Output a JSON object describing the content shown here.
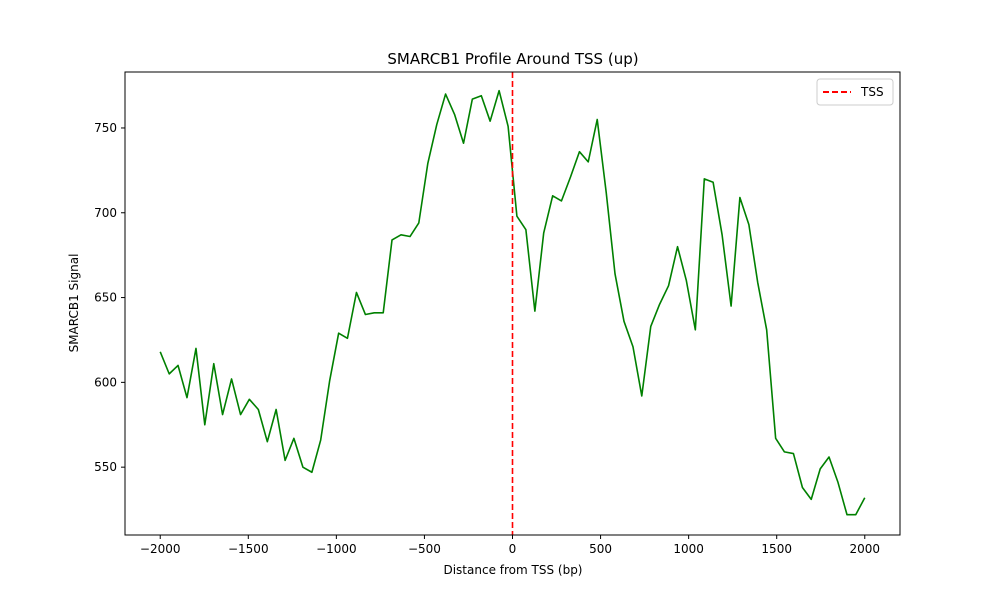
{
  "chart_data": {
    "type": "line",
    "title": "SMARCB1 Profile Around TSS (up)",
    "xlabel": "Distance from TSS (bp)",
    "ylabel": "SMARCB1 Signal",
    "xlim": [
      -2200,
      2200
    ],
    "ylim": [
      510,
      783
    ],
    "xticks": [
      -2000,
      -1500,
      -1000,
      -500,
      0,
      500,
      1000,
      1500,
      2000
    ],
    "xtick_labels": [
      "−2000",
      "−1500",
      "−1000",
      "−500",
      "0",
      "500",
      "1000",
      "1500",
      "2000"
    ],
    "yticks": [
      550,
      600,
      650,
      700,
      750
    ],
    "ytick_labels": [
      "550",
      "600",
      "650",
      "700",
      "750"
    ],
    "grid": false,
    "legend": {
      "position": "top-right",
      "entries": [
        "TSS"
      ]
    },
    "series": [
      {
        "color": "#008000",
        "x": [
          -2000,
          -1949,
          -1899,
          -1848,
          -1797,
          -1747,
          -1696,
          -1646,
          -1595,
          -1544,
          -1494,
          -1443,
          -1392,
          -1342,
          -1291,
          -1241,
          -1190,
          -1139,
          -1089,
          -1038,
          -987,
          -937,
          -886,
          -835,
          -785,
          -734,
          -684,
          -633,
          -582,
          -532,
          -481,
          -430,
          -380,
          -329,
          -278,
          -228,
          -177,
          -127,
          -76,
          -25,
          25,
          76,
          127,
          177,
          228,
          278,
          329,
          380,
          430,
          481,
          532,
          582,
          633,
          684,
          734,
          785,
          835,
          886,
          937,
          987,
          1038,
          1089,
          1139,
          1190,
          1241,
          1291,
          1342,
          1392,
          1443,
          1494,
          1544,
          1595,
          1646,
          1696,
          1747,
          1797,
          1848,
          1899,
          1949,
          2000
        ],
        "y": [
          618,
          605,
          610,
          591,
          620,
          575,
          611,
          581,
          602,
          581,
          590,
          584,
          565,
          584,
          554,
          567,
          550,
          547,
          566,
          601,
          629,
          626,
          653,
          640,
          641,
          641,
          684,
          687,
          686,
          694,
          729,
          752,
          770,
          758,
          741,
          767,
          769,
          754,
          772,
          751,
          698,
          690,
          642,
          688,
          710,
          707,
          721,
          736,
          730,
          755,
          712,
          664,
          636,
          621,
          592,
          633,
          646,
          657,
          680,
          660,
          631,
          720,
          718,
          687,
          645,
          709,
          693,
          659,
          631,
          567,
          559,
          558,
          538,
          531,
          549,
          556,
          541,
          522,
          522,
          532
        ]
      }
    ],
    "annotations": [
      {
        "type": "vline",
        "x": 0,
        "color": "#ff0000",
        "style": "dashed",
        "label": "TSS"
      }
    ]
  }
}
